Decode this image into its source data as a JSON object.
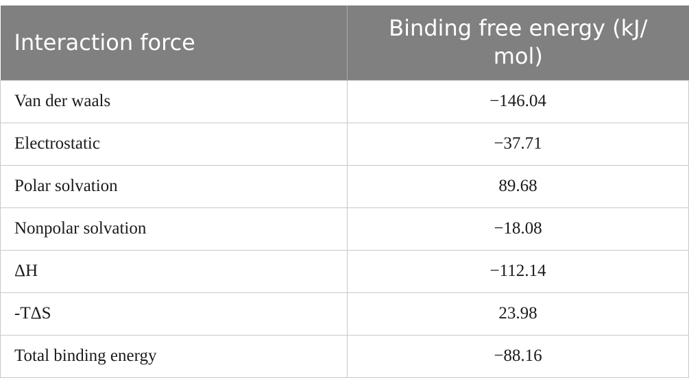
{
  "table": {
    "headers": [
      "Interaction force",
      "Binding free energy (kJ/\nmol)"
    ],
    "header_1": "Interaction force",
    "header_2_line1": "Binding free energy (kJ/",
    "header_2_line2": "mol)",
    "rows": [
      {
        "label": "Van der waals",
        "value": "−146.04"
      },
      {
        "label": "Electrostatic",
        "value": "−37.71"
      },
      {
        "label": "Polar solvation",
        "value": "89.68"
      },
      {
        "label": "Nonpolar solvation",
        "value": "−18.08"
      },
      {
        "label": "ΔH",
        "value": "−112.14"
      },
      {
        "label": "-TΔS",
        "value": "23.98"
      },
      {
        "label": "Total binding energy",
        "value": "−88.16"
      }
    ]
  },
  "colors": {
    "header_bg": "#7f807f",
    "header_text": "#ffffff",
    "grid": "#c8c8c8"
  }
}
